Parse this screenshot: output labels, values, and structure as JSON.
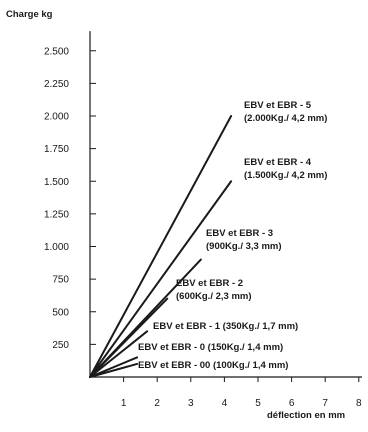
{
  "chart_data": {
    "type": "line",
    "ylabel": "Charge kg",
    "xlabel": "déflection en mm",
    "xlim": [
      0,
      8.5
    ],
    "ylim": [
      0,
      2500
    ],
    "x_ticks": [
      "1",
      "2",
      "3",
      "4",
      "5",
      "6",
      "7",
      "8"
    ],
    "y_ticks": [
      "250",
      "500",
      "750",
      "1.000",
      "1.250",
      "1.500",
      "1.750",
      "2.000",
      "2.250",
      "2.500"
    ],
    "series": [
      {
        "name": "EBV et EBR - 5",
        "detail": "(2.000Kg./ 4,2 mm)",
        "x": [
          0,
          4.2
        ],
        "y": [
          0,
          2000
        ]
      },
      {
        "name": "EBV et EBR - 4",
        "detail": "(1.500Kg./ 4,2 mm)",
        "x": [
          0,
          4.2
        ],
        "y": [
          0,
          1500
        ]
      },
      {
        "name": "EBV et EBR - 3",
        "detail": "(900Kg./ 3,3 mm)",
        "x": [
          0,
          3.3
        ],
        "y": [
          0,
          900
        ]
      },
      {
        "name": "EBV et EBR - 2",
        "detail": "(600Kg./ 2,3 mm)",
        "x": [
          0,
          2.3
        ],
        "y": [
          0,
          600
        ]
      },
      {
        "name": "EBV et EBR - 1",
        "detail": "(350Kg./ 1,7 mm)",
        "x": [
          0,
          1.7
        ],
        "y": [
          0,
          350
        ]
      },
      {
        "name": "EBV et EBR - 0",
        "detail": "(150Kg./ 1,4 mm)",
        "x": [
          0,
          1.4
        ],
        "y": [
          0,
          150
        ]
      },
      {
        "name": "EBV et EBR - 00",
        "detail": "(100Kg./ 1,4 mm)",
        "x": [
          0,
          1.4
        ],
        "y": [
          0,
          100
        ]
      }
    ]
  }
}
